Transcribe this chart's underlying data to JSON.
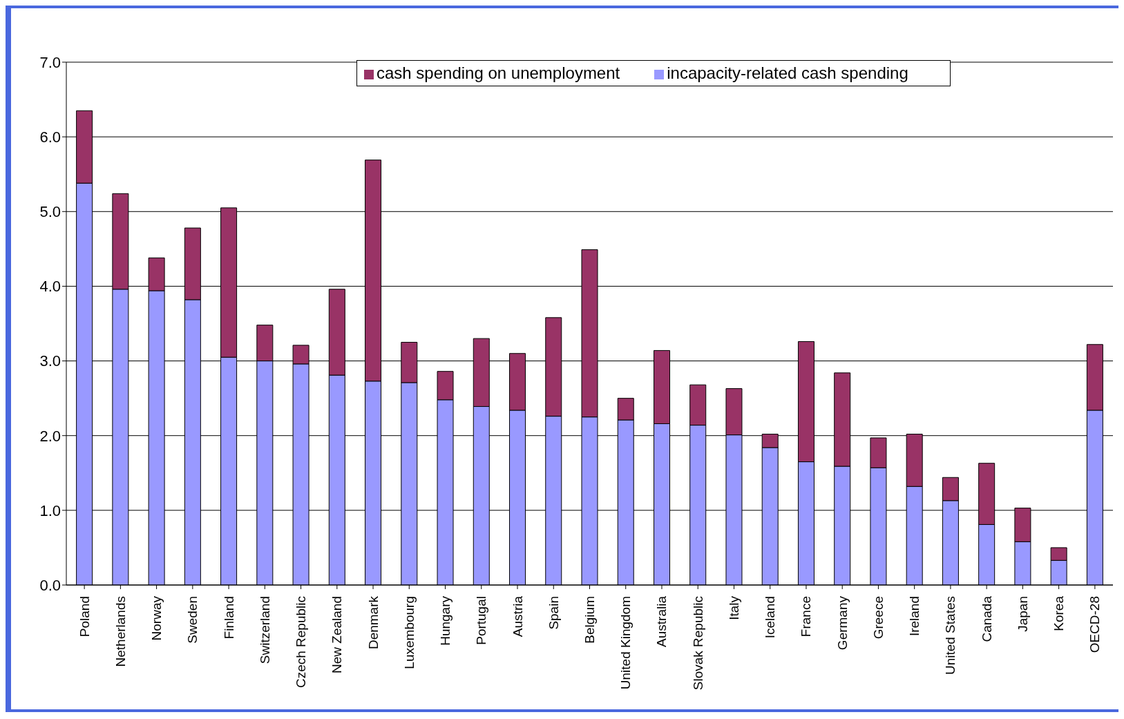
{
  "chart_data": {
    "type": "bar",
    "stacked": true,
    "categories": [
      "Poland",
      "Netherlands",
      "Norway",
      "Sweden",
      "Finland",
      "Switzerland",
      "Czech Republic",
      "New Zealand",
      "Denmark",
      "Luxembourg",
      "Hungary",
      "Portugal",
      "Austria",
      "Spain",
      "Belgium",
      "United Kingdom",
      "Australia",
      "Slovak Republic",
      "Italy",
      "Iceland",
      "France",
      "Germany",
      "Greece",
      "Ireland",
      "United States",
      "Canada",
      "Japan",
      "Korea",
      "OECD-28"
    ],
    "series": [
      {
        "name": "incapacity-related cash spending",
        "color": "#9999ff",
        "values": [
          5.38,
          3.96,
          3.94,
          3.82,
          3.05,
          3.0,
          2.96,
          2.81,
          2.73,
          2.71,
          2.48,
          2.39,
          2.34,
          2.26,
          2.25,
          2.21,
          2.16,
          2.14,
          2.01,
          1.84,
          1.65,
          1.59,
          1.57,
          1.32,
          1.13,
          0.81,
          0.58,
          0.33,
          2.34
        ]
      },
      {
        "name": "cash spending on unemployment",
        "color": "#993366",
        "values": [
          0.97,
          1.28,
          0.44,
          0.96,
          2.0,
          0.48,
          0.25,
          1.15,
          2.96,
          0.54,
          0.38,
          0.91,
          0.76,
          1.32,
          2.24,
          0.29,
          0.98,
          0.54,
          0.62,
          0.18,
          1.61,
          1.25,
          0.4,
          0.7,
          0.31,
          0.82,
          0.45,
          0.17,
          0.88
        ]
      }
    ],
    "ylim": [
      0,
      7
    ],
    "yticks": [
      {
        "value": 0,
        "label": "0.0"
      },
      {
        "value": 1,
        "label": "1.0"
      },
      {
        "value": 2,
        "label": "2.0"
      },
      {
        "value": 3,
        "label": "3.0"
      },
      {
        "value": 4,
        "label": "4.0"
      },
      {
        "value": 5,
        "label": "5.0"
      },
      {
        "value": 6,
        "label": "6.0"
      },
      {
        "value": 7,
        "label": "7.0"
      }
    ],
    "grid": "y",
    "legend": "top"
  }
}
